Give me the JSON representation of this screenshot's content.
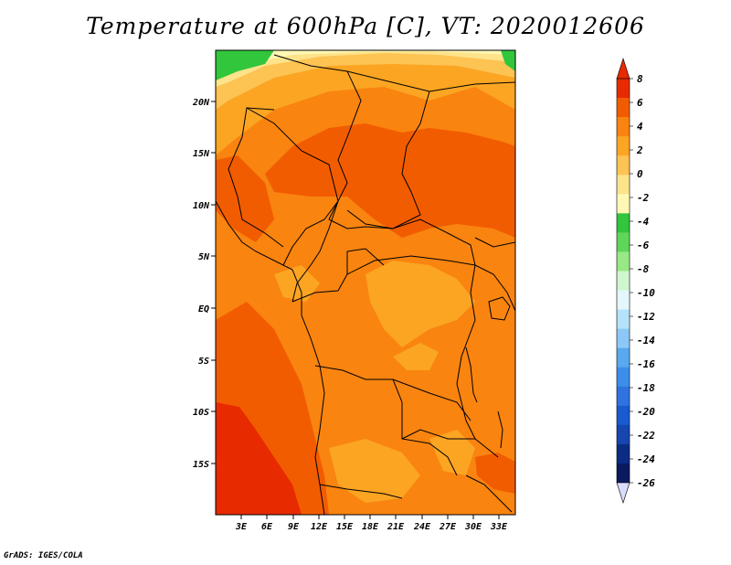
{
  "title": "Temperature at 600hPa [C], VT: 2020012606",
  "credit": "GrADS: IGES/COLA",
  "map": {
    "lat_labels": [
      "20N",
      "15N",
      "10N",
      "5N",
      "EQ",
      "5S",
      "10S",
      "15S"
    ],
    "lon_labels": [
      "3E",
      "6E",
      "9E",
      "12E",
      "15E",
      "18E",
      "21E",
      "24E",
      "27E",
      "30E",
      "33E"
    ]
  },
  "colorbar": {
    "labels": [
      "8",
      "6",
      "4",
      "2",
      "0",
      "-2",
      "-4",
      "-6",
      "-8",
      "-10",
      "-12",
      "-14",
      "-16",
      "-18",
      "-20",
      "-22",
      "-24",
      "-26"
    ],
    "colors": [
      "#e82a00",
      "#f25c00",
      "#f98410",
      "#fba523",
      "#fdc353",
      "#fde38a",
      "#fff8b4",
      "#31c63b",
      "#5fd65a",
      "#98e886",
      "#cef7d0",
      "#e4f7fb",
      "#b5e2fb",
      "#8cc8f6",
      "#5aa9ee",
      "#3c8eea",
      "#2f73e0",
      "#195ad0",
      "#1646b0",
      "#0b2c84",
      "#0a1a5f"
    ],
    "top_arrow_color": "#e82a00",
    "bottom_arrow_color": "#d9dcfb"
  }
}
